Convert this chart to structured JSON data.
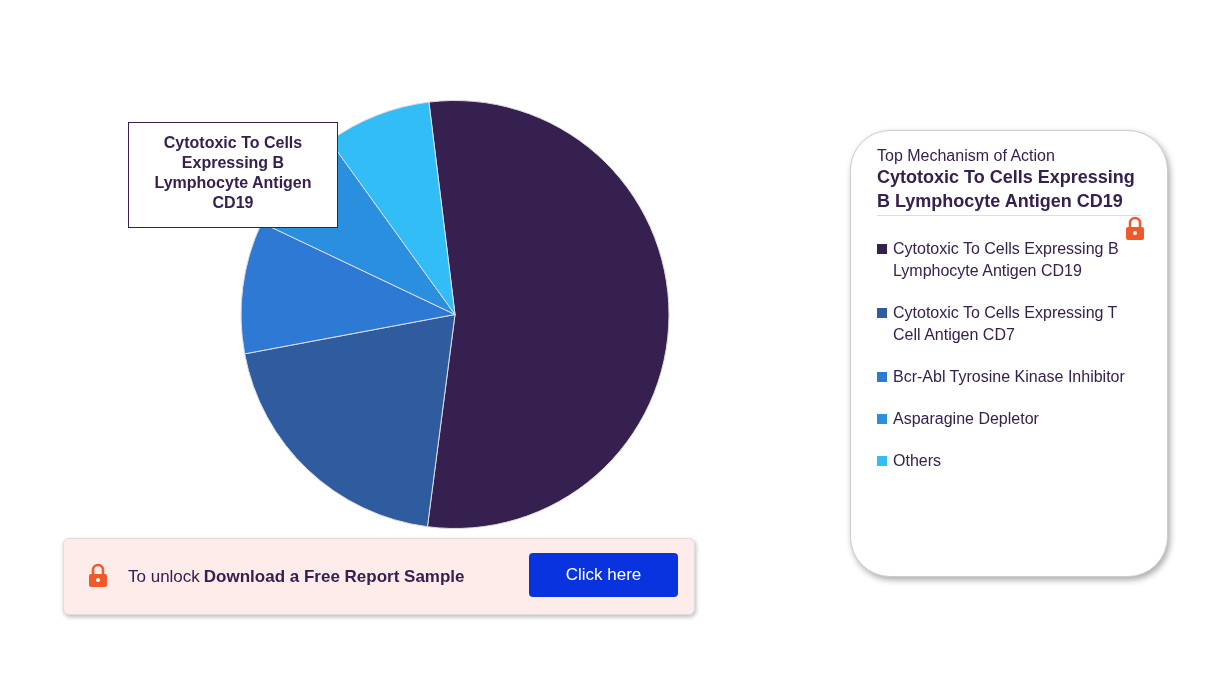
{
  "chart_data": {
    "type": "pie",
    "legend_title": "Top Mechanism of Action",
    "categories": [
      "Cytotoxic To Cells Expressing B Lymphocyte Antigen CD19",
      "Cytotoxic To Cells Expressing T Cell Antigen CD7",
      "Bcr-Abl Tyrosine Kinase Inhibitor",
      "Asparagine Depletor",
      "Others"
    ],
    "values": [
      54,
      20,
      10,
      8,
      8
    ],
    "colors": [
      "#35204f",
      "#2f5b9f",
      "#2e79d4",
      "#2b8fe0",
      "#33bdf7"
    ],
    "legend": "right",
    "annotations": [
      "Cytotoxic To Cells Expressing B Lymphocyte Antigen CD19",
      "Cytotoxic To Cells Expressing B Lymphocyte Antigen CD19",
      "To unlock",
      "Download a Free Report Sample",
      "Click here"
    ]
  }
}
